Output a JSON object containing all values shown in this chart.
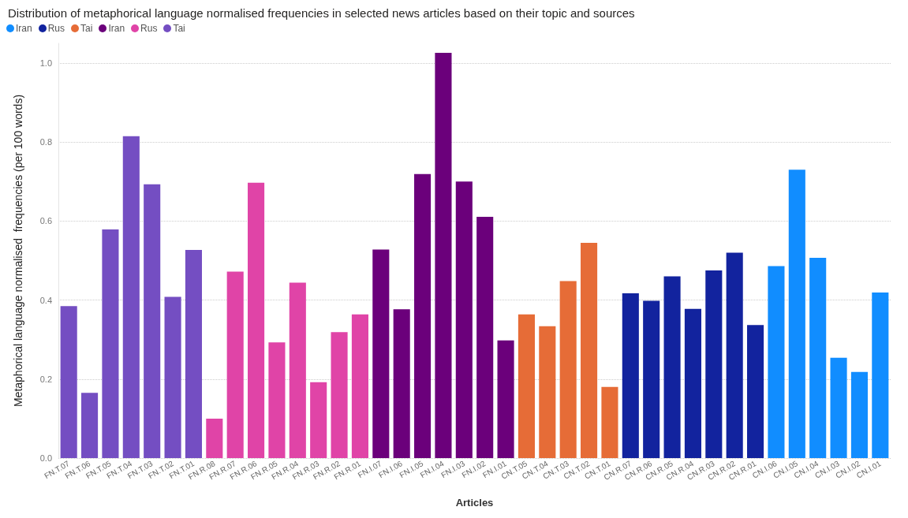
{
  "chart_data": {
    "type": "bar",
    "title": "Distribution of metaphorical language normalised frequencies in selected news articles based on their topic and sources",
    "xlabel": "Articles",
    "ylabel": "Metaphorical language normalised  frequencies (per 100 words)",
    "categories": [
      "FN.T.07",
      "FN.T.06",
      "FN.T.05",
      "FN.T.04",
      "FN.T.03",
      "FN.T.02",
      "FN.T.01",
      "FN.R.08",
      "FN.R.07",
      "FN.R.06",
      "FN.R.05",
      "FN.R.04",
      "FN.R.03",
      "FN.R.02",
      "FN.R.01",
      "FN.I.07",
      "FN.I.06",
      "FN.I.05",
      "FN.I.04",
      "FN.I.03",
      "FN.I.02",
      "FN.I.01",
      "CN.T.05",
      "CN.T.04",
      "CN.T.03",
      "CN.T.02",
      "CN.T.01",
      "CN.R.07",
      "CN.R.06",
      "CN.R.05",
      "CN.R.04",
      "CN.R.03",
      "CN.R.02",
      "CN.R.01",
      "CN.I.06",
      "CN.I.05",
      "CN.I.04",
      "CN.I.03",
      "CN.I.02",
      "CN.I.01"
    ],
    "series": [
      {
        "name": "Iran",
        "color": "#118dff",
        "values": [
          null,
          null,
          null,
          null,
          null,
          null,
          null,
          null,
          null,
          null,
          null,
          null,
          null,
          null,
          null,
          null,
          null,
          null,
          null,
          null,
          null,
          null,
          null,
          null,
          null,
          null,
          null,
          null,
          null,
          null,
          null,
          null,
          null,
          null,
          0.486,
          0.73,
          0.507,
          0.254,
          0.218,
          0.419
        ]
      },
      {
        "name": "Rus",
        "color": "#12239e",
        "values": [
          null,
          null,
          null,
          null,
          null,
          null,
          null,
          null,
          null,
          null,
          null,
          null,
          null,
          null,
          null,
          null,
          null,
          null,
          null,
          null,
          null,
          null,
          null,
          null,
          null,
          null,
          null,
          0.417,
          0.398,
          0.46,
          0.378,
          0.475,
          0.52,
          0.337,
          null,
          null,
          null,
          null,
          null,
          null
        ]
      },
      {
        "name": "Tai",
        "color": "#e66c37",
        "values": [
          null,
          null,
          null,
          null,
          null,
          null,
          null,
          null,
          null,
          null,
          null,
          null,
          null,
          null,
          null,
          null,
          null,
          null,
          null,
          null,
          null,
          null,
          0.364,
          0.334,
          0.448,
          0.545,
          0.18,
          null,
          null,
          null,
          null,
          null,
          null,
          null,
          null,
          null,
          null,
          null,
          null,
          null
        ]
      },
      {
        "name": "Iran",
        "color": "#6b007b",
        "values": [
          null,
          null,
          null,
          null,
          null,
          null,
          null,
          null,
          null,
          null,
          null,
          null,
          null,
          null,
          null,
          0.528,
          0.377,
          0.719,
          1.026,
          0.7,
          0.611,
          0.298,
          null,
          null,
          null,
          null,
          null,
          null,
          null,
          null,
          null,
          null,
          null,
          null,
          null,
          null,
          null,
          null,
          null,
          null
        ]
      },
      {
        "name": "Rus",
        "color": "#e044a7",
        "values": [
          null,
          null,
          null,
          null,
          null,
          null,
          null,
          0.1,
          0.472,
          0.697,
          0.293,
          0.444,
          0.192,
          0.319,
          0.364,
          null,
          null,
          null,
          null,
          null,
          null,
          null,
          null,
          null,
          null,
          null,
          null,
          null,
          null,
          null,
          null,
          null,
          null,
          null,
          null,
          null,
          null,
          null,
          null,
          null
        ]
      },
      {
        "name": "Tai",
        "color": "#744ec2",
        "values": [
          0.385,
          0.165,
          0.579,
          0.815,
          0.693,
          0.408,
          0.527,
          null,
          null,
          null,
          null,
          null,
          null,
          null,
          null,
          null,
          null,
          null,
          null,
          null,
          null,
          null,
          null,
          null,
          null,
          null,
          null,
          null,
          null,
          null,
          null,
          null,
          null,
          null,
          null,
          null,
          null,
          null,
          null,
          null
        ]
      }
    ],
    "ylim": [
      0,
      1.05
    ],
    "yticks": [
      {
        "value": 0,
        "label": "0.0"
      },
      0.2,
      0.4,
      0.6,
      0.8,
      {
        "value": 1,
        "label": "1.0"
      }
    ],
    "grid": "y",
    "legend": "top left"
  }
}
